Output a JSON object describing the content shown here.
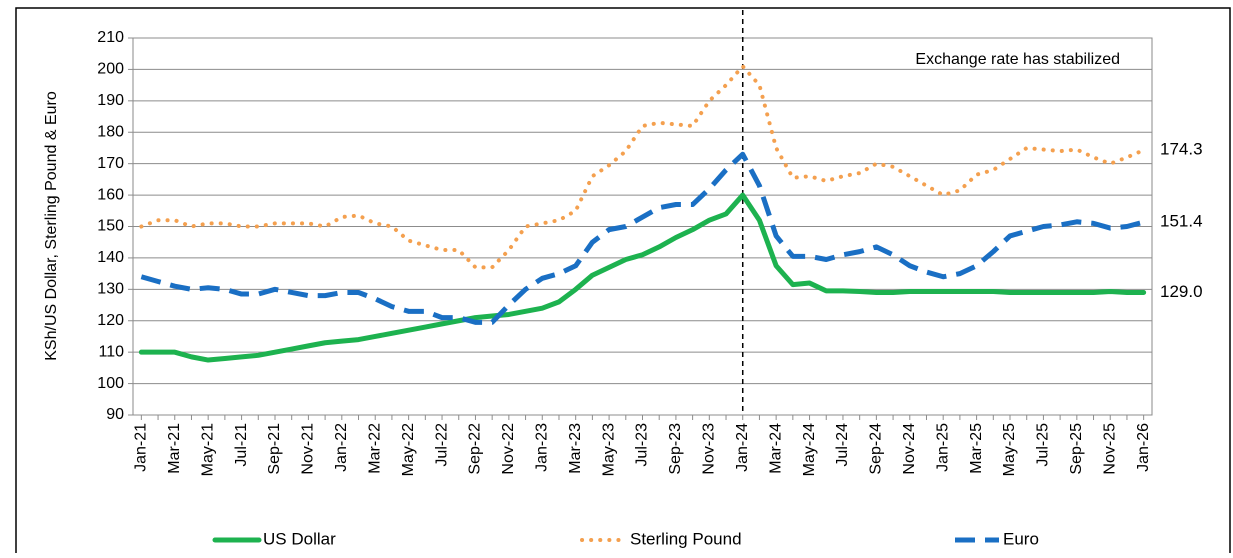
{
  "chart_data": {
    "type": "line",
    "y_label": "KSh/US Dollar, Sterling Pound & Euro",
    "categories": [
      "Jan-21",
      null,
      "Mar-21",
      null,
      "May-21",
      null,
      "Jul-21",
      null,
      "Sep-21",
      null,
      "Nov-21",
      null,
      "Jan-22",
      null,
      "Mar-22",
      null,
      "May-22",
      null,
      "Jul-22",
      null,
      "Sep-22",
      null,
      "Nov-22",
      null,
      "Jan-23",
      null,
      "Mar-23",
      null,
      "May-23",
      null,
      "Jul-23",
      null,
      "Sep-23",
      null,
      "Nov-23",
      null,
      "Jan-24",
      null,
      "Mar-24",
      null,
      "May-24",
      null,
      "Jul-24",
      null,
      "Sep-24",
      null,
      "Nov-24",
      null,
      "Jan-25",
      null,
      "Mar-25",
      null,
      "May-25",
      null,
      "Jul-25",
      null,
      "Sep-25",
      null,
      "Nov-25",
      null,
      "Jan-26"
    ],
    "series": [
      {
        "name": "US Dollar",
        "color": "#1db24f",
        "style": "solid",
        "label_color": "#1db24f",
        "values": [
          110,
          110,
          110,
          108.5,
          107.5,
          108,
          108.5,
          109,
          110,
          111,
          112,
          113,
          113.5,
          114,
          115,
          116,
          117,
          118,
          119,
          120,
          121,
          121.5,
          122,
          123,
          124,
          126,
          130,
          134.5,
          137,
          139.5,
          141,
          143.5,
          146.5,
          149,
          152,
          154,
          160,
          152,
          137.5,
          131.5,
          132,
          129.5,
          129.5,
          129.3,
          129,
          129,
          129.3,
          129.3,
          129.3,
          129.3,
          129.3,
          129.3,
          129,
          129,
          129,
          129,
          129,
          129,
          129.3,
          129,
          129.0
        ],
        "value_labels": [
          null,
          null,
          null,
          null,
          null,
          null,
          null,
          null,
          null,
          null,
          null,
          null,
          null,
          null,
          null,
          null,
          null,
          null,
          null,
          null,
          null,
          null,
          null,
          null,
          null,
          null,
          null,
          null,
          null,
          null,
          null,
          null,
          null,
          null,
          null,
          null,
          null,
          null,
          null,
          null,
          null,
          null,
          null,
          null,
          null,
          null,
          null,
          null,
          null,
          null,
          null,
          null,
          null,
          null,
          null,
          null,
          null,
          null,
          null,
          null,
          "129.0"
        ]
      },
      {
        "name": "Sterling Pound",
        "color": "#f4a04f",
        "style": "dotted",
        "label_color": "#a0522d",
        "values": [
          150,
          152,
          152,
          150,
          151,
          151,
          150,
          150,
          151,
          151,
          151,
          150,
          153,
          153.5,
          151,
          150,
          145.5,
          144,
          142.5,
          142.5,
          137,
          137,
          142.5,
          150,
          151,
          152,
          155,
          166,
          169.5,
          174,
          182,
          183,
          182.5,
          182,
          190,
          195,
          201,
          195,
          175,
          165.5,
          166,
          164.5,
          166,
          167,
          170,
          169,
          166,
          163,
          160,
          161.5,
          166.5,
          168,
          171.5,
          175,
          174.5,
          174,
          174.5,
          172,
          170,
          172,
          174.3
        ],
        "value_labels": [
          null,
          null,
          null,
          null,
          null,
          null,
          null,
          null,
          null,
          null,
          null,
          null,
          null,
          null,
          null,
          null,
          null,
          null,
          null,
          null,
          null,
          null,
          null,
          null,
          null,
          null,
          null,
          null,
          null,
          null,
          null,
          null,
          null,
          null,
          null,
          null,
          null,
          null,
          null,
          null,
          null,
          null,
          null,
          null,
          null,
          null,
          null,
          null,
          null,
          null,
          null,
          null,
          null,
          null,
          null,
          null,
          null,
          null,
          null,
          null,
          "174.3"
        ]
      },
      {
        "name": "Euro",
        "color": "#1a6fc4",
        "style": "dashed",
        "label_color": "#1a8fd0",
        "values": [
          134,
          132.5,
          131,
          130,
          130.5,
          130,
          128.5,
          128.5,
          130,
          129,
          128,
          128,
          129,
          129,
          127,
          124.5,
          123,
          123,
          121,
          121,
          119.5,
          119.5,
          125,
          130,
          133.5,
          135,
          137.5,
          145,
          149,
          150,
          153,
          156,
          157,
          157,
          162,
          168,
          173,
          163,
          147,
          140.5,
          140.5,
          139.5,
          141,
          142,
          143.5,
          141,
          137.5,
          135.5,
          134,
          135,
          137.5,
          142,
          147,
          148.5,
          150,
          150.5,
          151.5,
          151,
          149.5,
          150,
          151.4
        ],
        "value_labels": [
          null,
          null,
          null,
          null,
          null,
          null,
          null,
          null,
          null,
          null,
          null,
          null,
          null,
          null,
          null,
          null,
          null,
          null,
          null,
          null,
          null,
          null,
          null,
          null,
          null,
          null,
          null,
          null,
          null,
          null,
          null,
          null,
          null,
          null,
          null,
          null,
          null,
          null,
          null,
          null,
          null,
          null,
          null,
          null,
          null,
          null,
          null,
          null,
          null,
          null,
          null,
          null,
          null,
          null,
          null,
          null,
          null,
          null,
          null,
          null,
          "151.4"
        ]
      }
    ],
    "ylim": [
      90,
      210
    ],
    "yticks": [
      90,
      100,
      110,
      120,
      130,
      140,
      150,
      160,
      170,
      180,
      190,
      200,
      210
    ],
    "grid": true,
    "legend": "bottom",
    "annotations": [
      {
        "text": "Exchange rate has stabilized",
        "x": "Jan-24"
      }
    ]
  }
}
